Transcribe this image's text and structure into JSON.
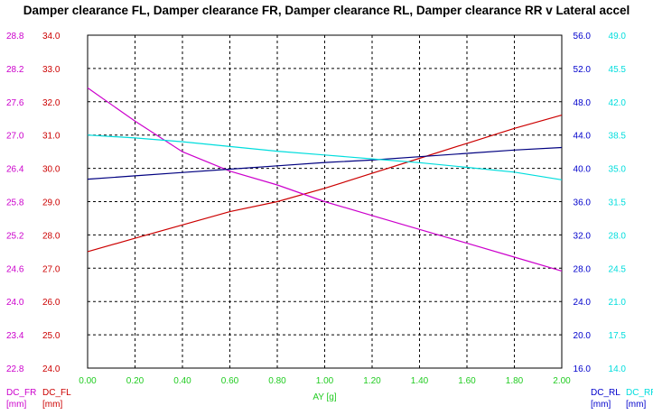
{
  "chart_data": {
    "type": "line",
    "title": "Damper clearance FL, Damper clearance FR, Damper clearance RL, Damper clearance RR v Lateral accel",
    "xlabel": "AY [g]",
    "xlim": [
      0.0,
      2.0
    ],
    "x_ticks": [
      "0.00",
      "0.20",
      "0.40",
      "0.60",
      "0.80",
      "1.00",
      "1.20",
      "1.40",
      "1.60",
      "1.80",
      "2.00"
    ],
    "grid": true,
    "axes": {
      "DC_FR": {
        "label": "DC_FR",
        "unit": "[mm]",
        "side": "left-outer",
        "color": "#cc00cc",
        "range": [
          22.8,
          28.8
        ],
        "ticks": [
          "28.8",
          "28.2",
          "27.6",
          "27.0",
          "26.4",
          "25.8",
          "25.2",
          "24.6",
          "24.0",
          "23.4",
          "22.8"
        ]
      },
      "DC_FL": {
        "label": "DC_FL",
        "unit": "[mm]",
        "side": "left-inner",
        "color": "#cc0000",
        "range": [
          24.0,
          34.0
        ],
        "ticks": [
          "34.0",
          "33.0",
          "32.0",
          "31.0",
          "30.0",
          "29.0",
          "28.0",
          "27.0",
          "26.0",
          "25.0",
          "24.0"
        ]
      },
      "DC_RL": {
        "label": "DC_RL",
        "unit": "[mm]",
        "side": "right-inner",
        "color": "#0000cc",
        "range": [
          16.0,
          56.0
        ],
        "ticks": [
          "56.0",
          "52.0",
          "48.0",
          "44.0",
          "40.0",
          "36.0",
          "32.0",
          "28.0",
          "24.0",
          "20.0",
          "16.0"
        ]
      },
      "DC_RR": {
        "label": "DC_RR",
        "unit": "[mm]",
        "side": "right-outer",
        "color": "#00dddd",
        "range": [
          14.0,
          49.0
        ],
        "ticks": [
          "49.0",
          "45.5",
          "42.0",
          "38.5",
          "35.0",
          "31.5",
          "28.0",
          "24.5",
          "21.0",
          "17.5",
          "14.0"
        ]
      }
    },
    "series": [
      {
        "axis": "DC_FL",
        "color": "#cc0000",
        "x": [
          0.0,
          0.2,
          0.4,
          0.6,
          0.8,
          1.0,
          1.2,
          1.4,
          1.6,
          1.8,
          2.0
        ],
        "values": [
          27.5,
          27.9,
          28.3,
          28.7,
          29.0,
          29.4,
          29.85,
          30.3,
          30.75,
          31.2,
          31.6
        ]
      },
      {
        "axis": "DC_FR",
        "color": "#cc00cc",
        "x": [
          0.0,
          0.2,
          0.4,
          0.6,
          0.8,
          1.0,
          1.2,
          1.4,
          1.6,
          1.8,
          2.0
        ],
        "values": [
          27.85,
          27.25,
          26.7,
          26.35,
          26.1,
          25.8,
          25.55,
          25.3,
          25.05,
          24.8,
          24.55
        ]
      },
      {
        "axis": "DC_RL",
        "color": "#000080",
        "x": [
          0.0,
          0.2,
          0.4,
          0.6,
          0.8,
          1.0,
          1.2,
          1.4,
          1.6,
          1.8,
          2.0
        ],
        "values": [
          38.7,
          39.1,
          39.5,
          39.9,
          40.3,
          40.7,
          41.0,
          41.4,
          41.8,
          42.2,
          42.5
        ]
      },
      {
        "axis": "DC_RR",
        "color": "#00dddd",
        "x": [
          0.0,
          0.2,
          0.4,
          0.6,
          0.8,
          1.0,
          1.2,
          1.4,
          1.6,
          1.8,
          2.0
        ],
        "values": [
          38.5,
          38.2,
          37.8,
          37.3,
          36.8,
          36.4,
          36.0,
          35.6,
          35.1,
          34.6,
          33.8
        ]
      }
    ]
  }
}
